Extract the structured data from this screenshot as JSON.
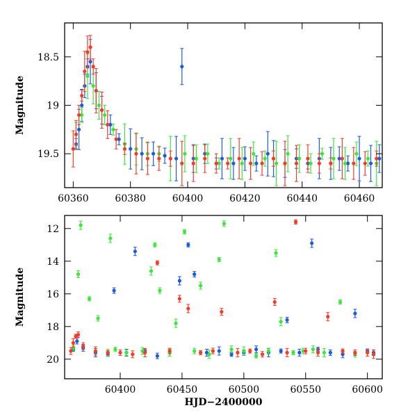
{
  "chart_data": [
    {
      "type": "scatter",
      "panel": "top",
      "xlabel": "",
      "ylabel": "Magnitude",
      "xlim": [
        60357,
        60468
      ],
      "ylim": [
        19.85,
        18.15
      ],
      "y_inverted": true,
      "xticks": [
        60360,
        60380,
        60400,
        60420,
        60440,
        60460
      ],
      "yticks": [
        18.5,
        19,
        19.5
      ],
      "ytick_labels": [
        "18.5",
        "19",
        "19.5"
      ],
      "series_colors": [
        "#1e5adc",
        "#3ce63c",
        "#f03c28"
      ],
      "series": [
        {
          "color": "#1e5adc",
          "x": [
            60361,
            60362,
            60363,
            60364,
            60365,
            60366,
            60368,
            60370,
            60373,
            60376,
            60380,
            60384,
            60388,
            60392,
            60396,
            60398,
            60402,
            60406,
            60410,
            60412,
            60416,
            60420,
            60424,
            60428,
            60430,
            60434,
            60438,
            60442,
            60446,
            60450,
            60453,
            60456,
            60460,
            60464,
            60467
          ],
          "y": [
            19.4,
            19.25,
            19.0,
            18.8,
            18.6,
            18.55,
            18.85,
            19.05,
            19.2,
            19.35,
            19.45,
            19.5,
            19.5,
            19.52,
            19.55,
            18.6,
            19.55,
            19.5,
            19.6,
            19.55,
            19.6,
            19.55,
            19.6,
            19.5,
            19.55,
            19.6,
            19.55,
            19.6,
            19.55,
            19.6,
            19.55,
            19.6,
            19.55,
            19.6,
            19.55
          ]
        },
        {
          "color": "#3ce63c",
          "x": [
            60361,
            60363,
            60365,
            60367,
            60369,
            60371,
            60374,
            60378,
            60382,
            60386,
            60390,
            60394,
            60399,
            60403,
            60407,
            60411,
            60415,
            60419,
            60423,
            60427,
            60431,
            60435,
            60439,
            60443,
            60447,
            60451,
            60455,
            60459,
            60463,
            60466
          ],
          "y": [
            19.3,
            19.1,
            18.7,
            18.8,
            19.0,
            19.1,
            19.25,
            19.4,
            19.45,
            19.5,
            19.5,
            19.55,
            19.5,
            19.55,
            19.5,
            19.6,
            19.55,
            19.6,
            19.5,
            19.55,
            19.6,
            19.5,
            19.55,
            19.6,
            19.5,
            19.55,
            19.6,
            19.5,
            19.55,
            19.6
          ]
        },
        {
          "color": "#f03c28",
          "x": [
            60360,
            60361,
            60362,
            60363,
            60364,
            60365,
            60366,
            60367,
            60368,
            60370,
            60372,
            60375,
            60378,
            60382,
            60386,
            60390,
            60394,
            60398,
            60402,
            60406,
            60410,
            60414,
            60418,
            60422,
            60426,
            60430,
            60434,
            60438,
            60442,
            60446,
            60450,
            60454,
            60458,
            60462,
            60466
          ],
          "y": [
            19.45,
            19.3,
            19.1,
            18.9,
            18.65,
            18.45,
            18.4,
            18.6,
            18.85,
            19.05,
            19.2,
            19.35,
            19.45,
            19.5,
            19.55,
            19.55,
            19.55,
            19.6,
            19.6,
            19.55,
            19.6,
            19.6,
            19.55,
            19.6,
            19.6,
            19.55,
            19.6,
            19.6,
            19.55,
            19.6,
            19.6,
            19.55,
            19.6,
            19.6,
            19.55
          ]
        }
      ]
    },
    {
      "type": "scatter",
      "panel": "bottom",
      "xlabel": "HJD−2400000",
      "ylabel": "Magnitude",
      "xlim": [
        60355,
        60612
      ],
      "ylim": [
        21.2,
        11.2
      ],
      "y_inverted": true,
      "xticks": [
        60400,
        60450,
        60500,
        60550,
        60600
      ],
      "yticks": [
        12,
        14,
        16,
        18,
        20
      ],
      "series_colors": [
        "#1e5adc",
        "#3ce63c",
        "#f03c28"
      ],
      "series": [
        {
          "color": "#1e5adc",
          "x": [
            60362,
            60365,
            60370,
            60380,
            60390,
            60395,
            60405,
            60412,
            60420,
            60430,
            60440,
            60448,
            60455,
            60460,
            60470,
            60480,
            60490,
            60500,
            60510,
            60520,
            60530,
            60535,
            60545,
            60555,
            60560,
            60570,
            60580,
            60590,
            60600,
            60605
          ],
          "y": [
            19.4,
            18.9,
            19.3,
            19.6,
            19.7,
            15.8,
            19.6,
            13.4,
            19.5,
            19.8,
            19.6,
            15.2,
            13.0,
            14.8,
            19.6,
            19.5,
            19.7,
            19.6,
            19.4,
            19.6,
            19.5,
            17.6,
            19.6,
            12.9,
            19.4,
            19.6,
            19.7,
            17.2,
            19.5,
            19.6
          ]
        },
        {
          "color": "#3ce63c",
          "x": [
            60362,
            60366,
            60368,
            60375,
            60382,
            60390,
            60392,
            60396,
            60405,
            60418,
            60425,
            60428,
            60432,
            60440,
            60445,
            60452,
            60460,
            60465,
            60472,
            60480,
            60484,
            60490,
            60500,
            60510,
            60520,
            60526,
            60530,
            60540,
            60548,
            60556,
            60565,
            60578,
            60590,
            60600
          ],
          "y": [
            19.3,
            14.8,
            11.8,
            16.3,
            17.5,
            19.6,
            12.6,
            19.4,
            19.6,
            19.5,
            14.6,
            13.0,
            15.8,
            19.6,
            17.8,
            12.2,
            19.5,
            15.5,
            19.7,
            13.9,
            11.7,
            19.4,
            19.5,
            19.8,
            19.5,
            13.5,
            17.7,
            19.6,
            19.5,
            19.4,
            19.6,
            16.5,
            19.7,
            19.6
          ]
        },
        {
          "color": "#f03c28",
          "x": [
            60360,
            60362,
            60364,
            60366,
            60370,
            60380,
            60390,
            60400,
            60410,
            60420,
            60430,
            60440,
            60448,
            60455,
            60465,
            60475,
            60482,
            60495,
            60505,
            60515,
            60525,
            60535,
            60542,
            60550,
            60560,
            60568,
            60580,
            60590,
            60600,
            60605
          ],
          "y": [
            19.5,
            19.0,
            18.6,
            18.5,
            19.2,
            19.5,
            19.6,
            19.6,
            19.7,
            19.6,
            14.1,
            19.5,
            16.3,
            16.9,
            19.6,
            19.5,
            17.1,
            19.6,
            19.5,
            19.7,
            16.5,
            19.6,
            11.6,
            19.5,
            19.6,
            17.4,
            19.5,
            19.6,
            19.6,
            19.7
          ]
        }
      ]
    }
  ]
}
